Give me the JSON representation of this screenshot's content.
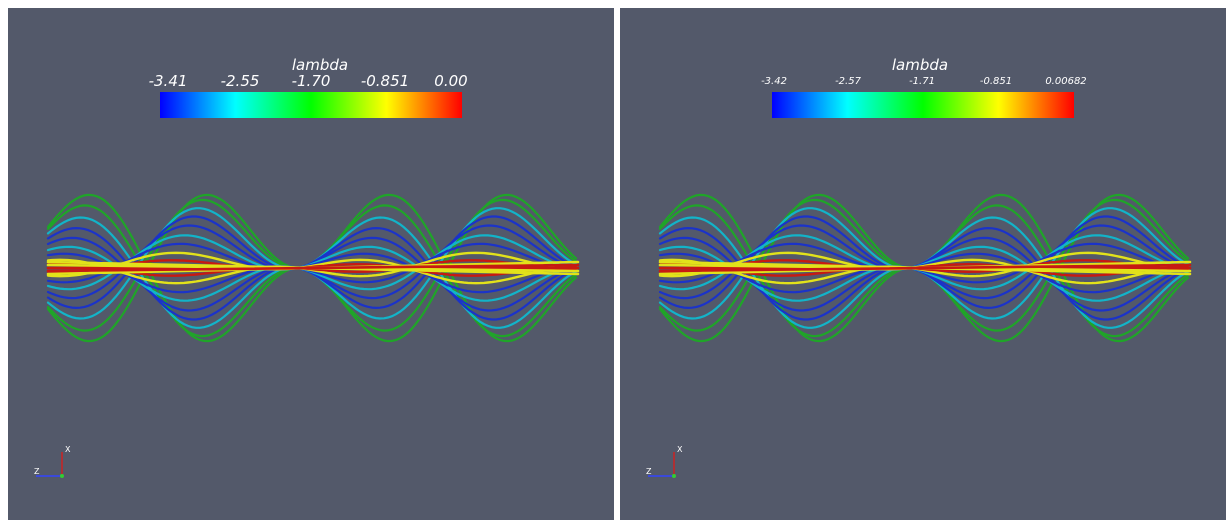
{
  "colors": {
    "background": "#53596a",
    "colormap": [
      "#0000ff",
      "#00ffff",
      "#00ff00",
      "#ffff00",
      "#ff0000"
    ],
    "curve_colors": [
      "#1b33c9",
      "#12b4c9",
      "#1fa528",
      "#e2e21a",
      "#c71a12"
    ]
  },
  "views": [
    {
      "colorbar": {
        "title": "lambda",
        "ticks": [
          "-3.41",
          "-2.55",
          "-1.70",
          "-0.851",
          "0.00"
        ],
        "tick_size": "large"
      },
      "axes": {
        "x": "X",
        "z": "Z"
      }
    },
    {
      "colorbar": {
        "title": "lambda",
        "ticks": [
          "-3.42",
          "-2.57",
          "-1.71",
          "-0.851",
          "0.00682"
        ],
        "tick_size": "small"
      },
      "axes": {
        "x": "X",
        "z": "Z"
      }
    }
  ]
}
